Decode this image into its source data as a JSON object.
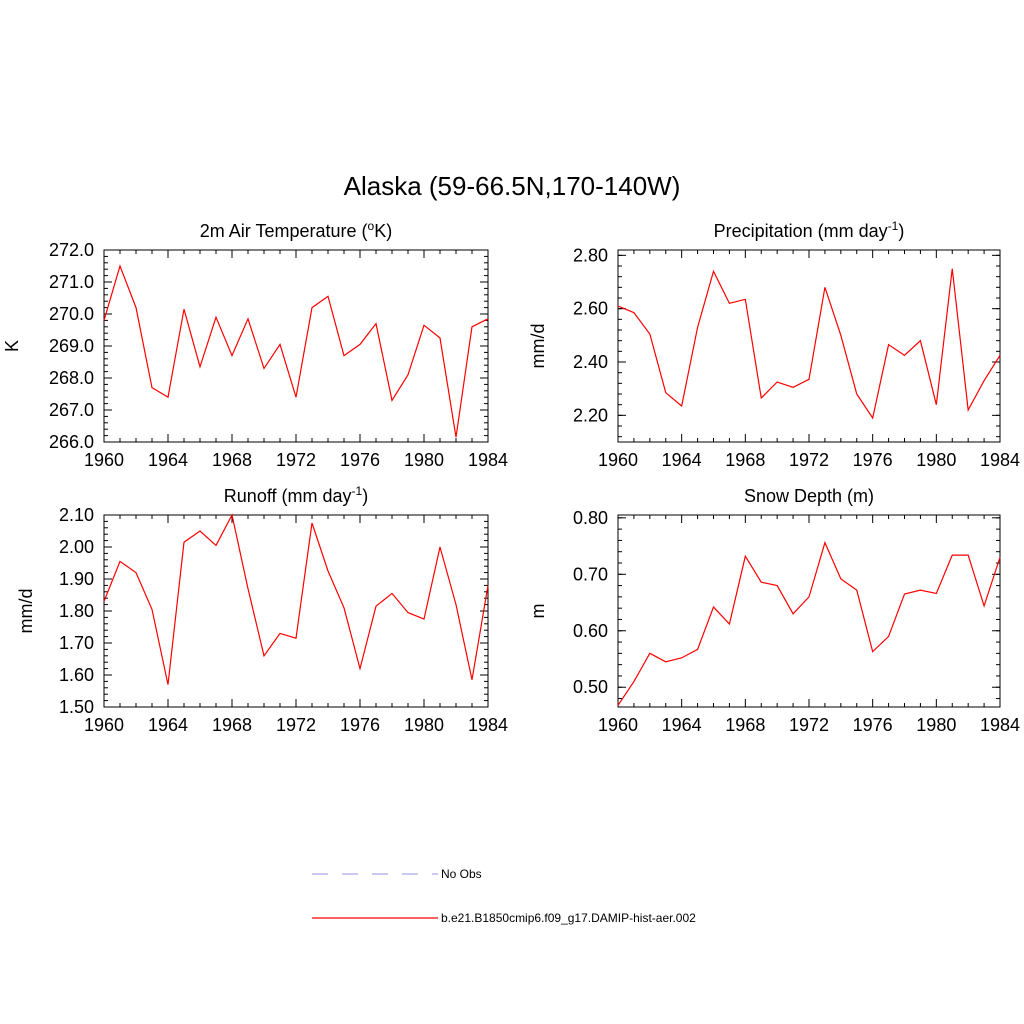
{
  "figure": {
    "title": "Alaska (59-66.5N,170-140W)"
  },
  "legend": {
    "items": [
      {
        "label": "No Obs",
        "color": "#a6a6e6",
        "style": "dashed"
      },
      {
        "label": "b.e21.B1850cmip6.f09_g17.DAMIP-hist-aer.002",
        "color": "#ff0000",
        "style": "solid"
      }
    ]
  },
  "chart_data": [
    {
      "type": "line",
      "title": "2m Air Temperature (",
      "title_sup": "o",
      "title_tail": "K)",
      "ylabel": "K",
      "xlim": [
        1960,
        1984
      ],
      "ylim": [
        266.0,
        272.0
      ],
      "xticks": [
        "1960",
        "1964",
        "1968",
        "1972",
        "1976",
        "1980",
        "1984"
      ],
      "yticks": [
        "266.0",
        "267.0",
        "268.0",
        "269.0",
        "270.0",
        "271.0",
        "272.0"
      ],
      "x": [
        1960,
        1961,
        1962,
        1963,
        1964,
        1965,
        1966,
        1967,
        1968,
        1969,
        1970,
        1971,
        1972,
        1973,
        1974,
        1975,
        1976,
        1977,
        1978,
        1979,
        1980,
        1981,
        1982,
        1983,
        1984
      ],
      "series": [
        {
          "values": [
            269.8,
            271.5,
            270.2,
            267.7,
            267.4,
            270.15,
            268.35,
            269.9,
            268.7,
            269.85,
            268.3,
            269.05,
            267.4,
            270.2,
            270.55,
            268.7,
            269.05,
            269.7,
            267.3,
            268.1,
            269.65,
            269.25,
            266.15,
            269.6,
            269.85
          ],
          "color": "#ff0000"
        }
      ]
    },
    {
      "type": "line",
      "title": "Precipitation (mm day",
      "title_sup": "-1",
      "title_tail": ")",
      "ylabel": "mm/d",
      "xlim": [
        1960,
        1984
      ],
      "ylim": [
        2.1,
        2.82
      ],
      "xticks": [
        "1960",
        "1964",
        "1968",
        "1972",
        "1976",
        "1980",
        "1984"
      ],
      "ytick_values": [
        2.2,
        2.4,
        2.6,
        2.8
      ],
      "yticks": [
        "2.20",
        "2.40",
        "2.60",
        "2.80"
      ],
      "x": [
        1960,
        1961,
        1962,
        1963,
        1964,
        1965,
        1966,
        1967,
        1968,
        1969,
        1970,
        1971,
        1972,
        1973,
        1974,
        1975,
        1976,
        1977,
        1978,
        1979,
        1980,
        1981,
        1982,
        1983,
        1984
      ],
      "series": [
        {
          "values": [
            2.61,
            2.585,
            2.505,
            2.285,
            2.235,
            2.53,
            2.74,
            2.62,
            2.635,
            2.265,
            2.325,
            2.305,
            2.335,
            2.68,
            2.5,
            2.28,
            2.19,
            2.465,
            2.425,
            2.48,
            2.24,
            2.75,
            2.22,
            2.33,
            2.425
          ],
          "color": "#ff0000"
        }
      ]
    },
    {
      "type": "line",
      "title": "Runoff (mm day",
      "title_sup": "-1",
      "title_tail": ")",
      "ylabel": "mm/d",
      "xlim": [
        1960,
        1984
      ],
      "ylim": [
        1.5,
        2.1
      ],
      "xticks": [
        "1960",
        "1964",
        "1968",
        "1972",
        "1976",
        "1980",
        "1984"
      ],
      "ytick_values": [
        1.5,
        1.6,
        1.7,
        1.8,
        1.9,
        2.0,
        2.1
      ],
      "yticks": [
        "1.50",
        "1.60",
        "1.70",
        "1.80",
        "1.90",
        "2.00",
        "2.10"
      ],
      "x": [
        1960,
        1961,
        1962,
        1963,
        1964,
        1965,
        1966,
        1967,
        1968,
        1969,
        1970,
        1971,
        1972,
        1973,
        1974,
        1975,
        1976,
        1977,
        1978,
        1979,
        1980,
        1981,
        1982,
        1983,
        1984
      ],
      "series": [
        {
          "values": [
            1.83,
            1.955,
            1.92,
            1.805,
            1.57,
            2.015,
            2.05,
            2.005,
            2.1,
            1.87,
            1.66,
            1.73,
            1.715,
            2.075,
            1.925,
            1.81,
            1.62,
            1.815,
            1.855,
            1.795,
            1.775,
            2.0,
            1.82,
            1.585,
            1.88
          ],
          "color": "#ff0000"
        }
      ]
    },
    {
      "type": "line",
      "title": "Snow Depth (m)",
      "title_sup": "",
      "title_tail": "",
      "ylabel": "m",
      "xlim": [
        1960,
        1984
      ],
      "ylim": [
        0.465,
        0.805
      ],
      "xticks": [
        "1960",
        "1964",
        "1968",
        "1972",
        "1976",
        "1980",
        "1984"
      ],
      "ytick_values": [
        0.5,
        0.6,
        0.7,
        0.8
      ],
      "yticks": [
        "0.50",
        "0.60",
        "0.70",
        "0.80"
      ],
      "x": [
        1960,
        1961,
        1962,
        1963,
        1964,
        1965,
        1966,
        1967,
        1968,
        1969,
        1970,
        1971,
        1972,
        1973,
        1974,
        1975,
        1976,
        1977,
        1978,
        1979,
        1980,
        1981,
        1982,
        1983,
        1984
      ],
      "series": [
        {
          "values": [
            0.468,
            0.51,
            0.56,
            0.545,
            0.552,
            0.567,
            0.642,
            0.612,
            0.732,
            0.686,
            0.68,
            0.63,
            0.66,
            0.756,
            0.692,
            0.672,
            0.563,
            0.59,
            0.665,
            0.672,
            0.666,
            0.734,
            0.734,
            0.644,
            0.73
          ],
          "color": "#ff0000"
        }
      ]
    }
  ]
}
